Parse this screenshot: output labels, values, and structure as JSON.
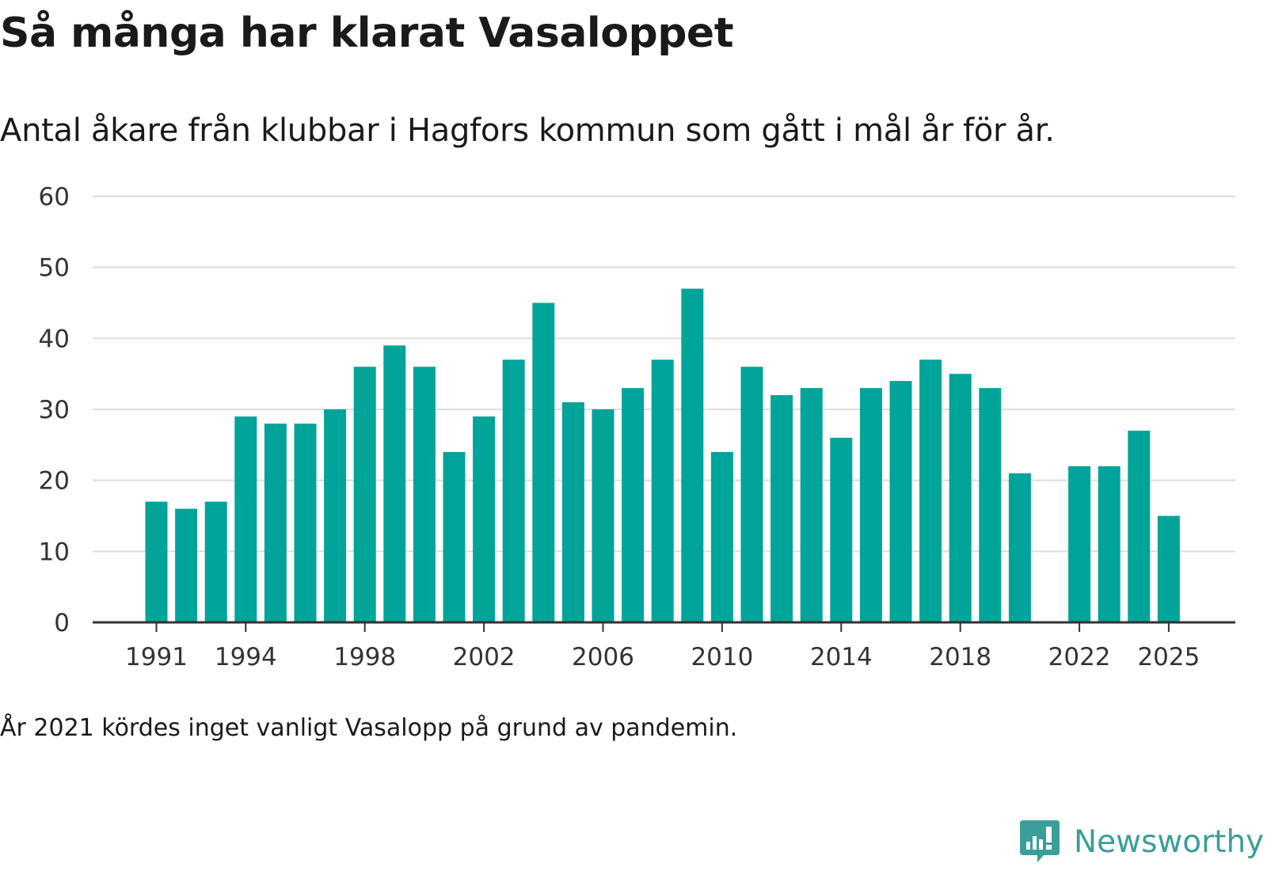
{
  "header": {
    "title": "Så många har klarat Vasaloppet",
    "subtitle": "Antal åkare från klubbar i Hagfors kommun som gått i mål år för år."
  },
  "footer": {
    "note": "År 2021 kördes inget vanligt Vasalopp på grund av pandemin.",
    "brand": "Newsworthy"
  },
  "colors": {
    "bar": "#00a499",
    "grid": "#dddddd",
    "axis": "#333333",
    "brand": "#3a9f98"
  },
  "chart_data": {
    "type": "bar",
    "title": "Så många har klarat Vasaloppet",
    "subtitle": "Antal åkare från klubbar i Hagfors kommun som gått i mål år för år.",
    "xlabel": "",
    "ylabel": "",
    "ylim": [
      0,
      60
    ],
    "y_ticks": [
      0,
      10,
      20,
      30,
      40,
      50,
      60
    ],
    "x_tick_labels": [
      "1991",
      "1994",
      "1998",
      "2002",
      "2006",
      "2010",
      "2014",
      "2018",
      "2022",
      "2025"
    ],
    "x_range": [
      1990,
      2027
    ],
    "grid": true,
    "categories": [
      "1991",
      "1992",
      "1993",
      "1994",
      "1995",
      "1996",
      "1997",
      "1998",
      "1999",
      "2000",
      "2001",
      "2002",
      "2003",
      "2004",
      "2005",
      "2006",
      "2007",
      "2008",
      "2009",
      "2010",
      "2011",
      "2012",
      "2013",
      "2014",
      "2015",
      "2016",
      "2017",
      "2018",
      "2019",
      "2020",
      "2021",
      "2022",
      "2023",
      "2024",
      "2025"
    ],
    "values": [
      17,
      16,
      17,
      29,
      28,
      28,
      30,
      36,
      39,
      36,
      24,
      29,
      37,
      45,
      31,
      30,
      33,
      37,
      47,
      24,
      36,
      32,
      33,
      26,
      33,
      34,
      37,
      35,
      33,
      21,
      null,
      22,
      22,
      27,
      15
    ]
  }
}
